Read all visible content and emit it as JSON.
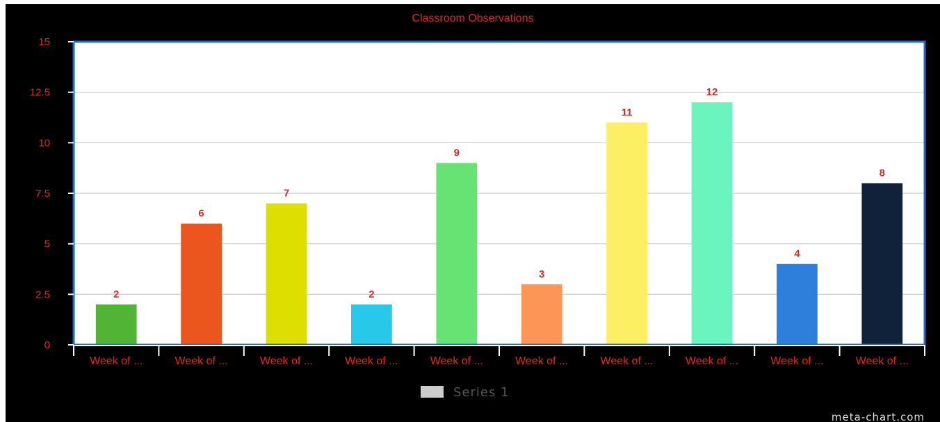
{
  "chart_data": {
    "type": "bar",
    "title": "Classroom Observations",
    "xlabel": "",
    "ylabel": "",
    "ylim": [
      0,
      15
    ],
    "yticks": [
      "0",
      "2.5",
      "5",
      "7.5",
      "10",
      "12.5",
      "15"
    ],
    "ytick_values": [
      0,
      2.5,
      5,
      7.5,
      10,
      12.5,
      15
    ],
    "grid": true,
    "categories": [
      "Week of ...",
      "Week of ...",
      "Week of ...",
      "Week of ...",
      "Week of ...",
      "Week of ...",
      "Week of ...",
      "Week of ...",
      "Week of ...",
      "Week of ..."
    ],
    "series": [
      {
        "name": "Series 1",
        "values": [
          2,
          6,
          7,
          2,
          9,
          3,
          11,
          12,
          4,
          8
        ]
      }
    ],
    "bar_colors": [
      "#52b435",
      "#ea561d",
      "#dcdf00",
      "#27c8e8",
      "#66e372",
      "#fd9556",
      "#fdef63",
      "#6af5be",
      "#2e7fdb",
      "#0f223a"
    ],
    "legend_position": "bottom",
    "legend_swatch_color": "#cccccc"
  },
  "colors": {
    "background": "#000000",
    "plot_background": "#ffffff",
    "plot_border": "#1a6fd0",
    "accent_text": "#e8231f",
    "data_label": "#d42e26",
    "gridline": "#c8c8c8",
    "legend_text": "#555555",
    "watermark": "#dddddd"
  },
  "watermark": "meta-chart.com"
}
